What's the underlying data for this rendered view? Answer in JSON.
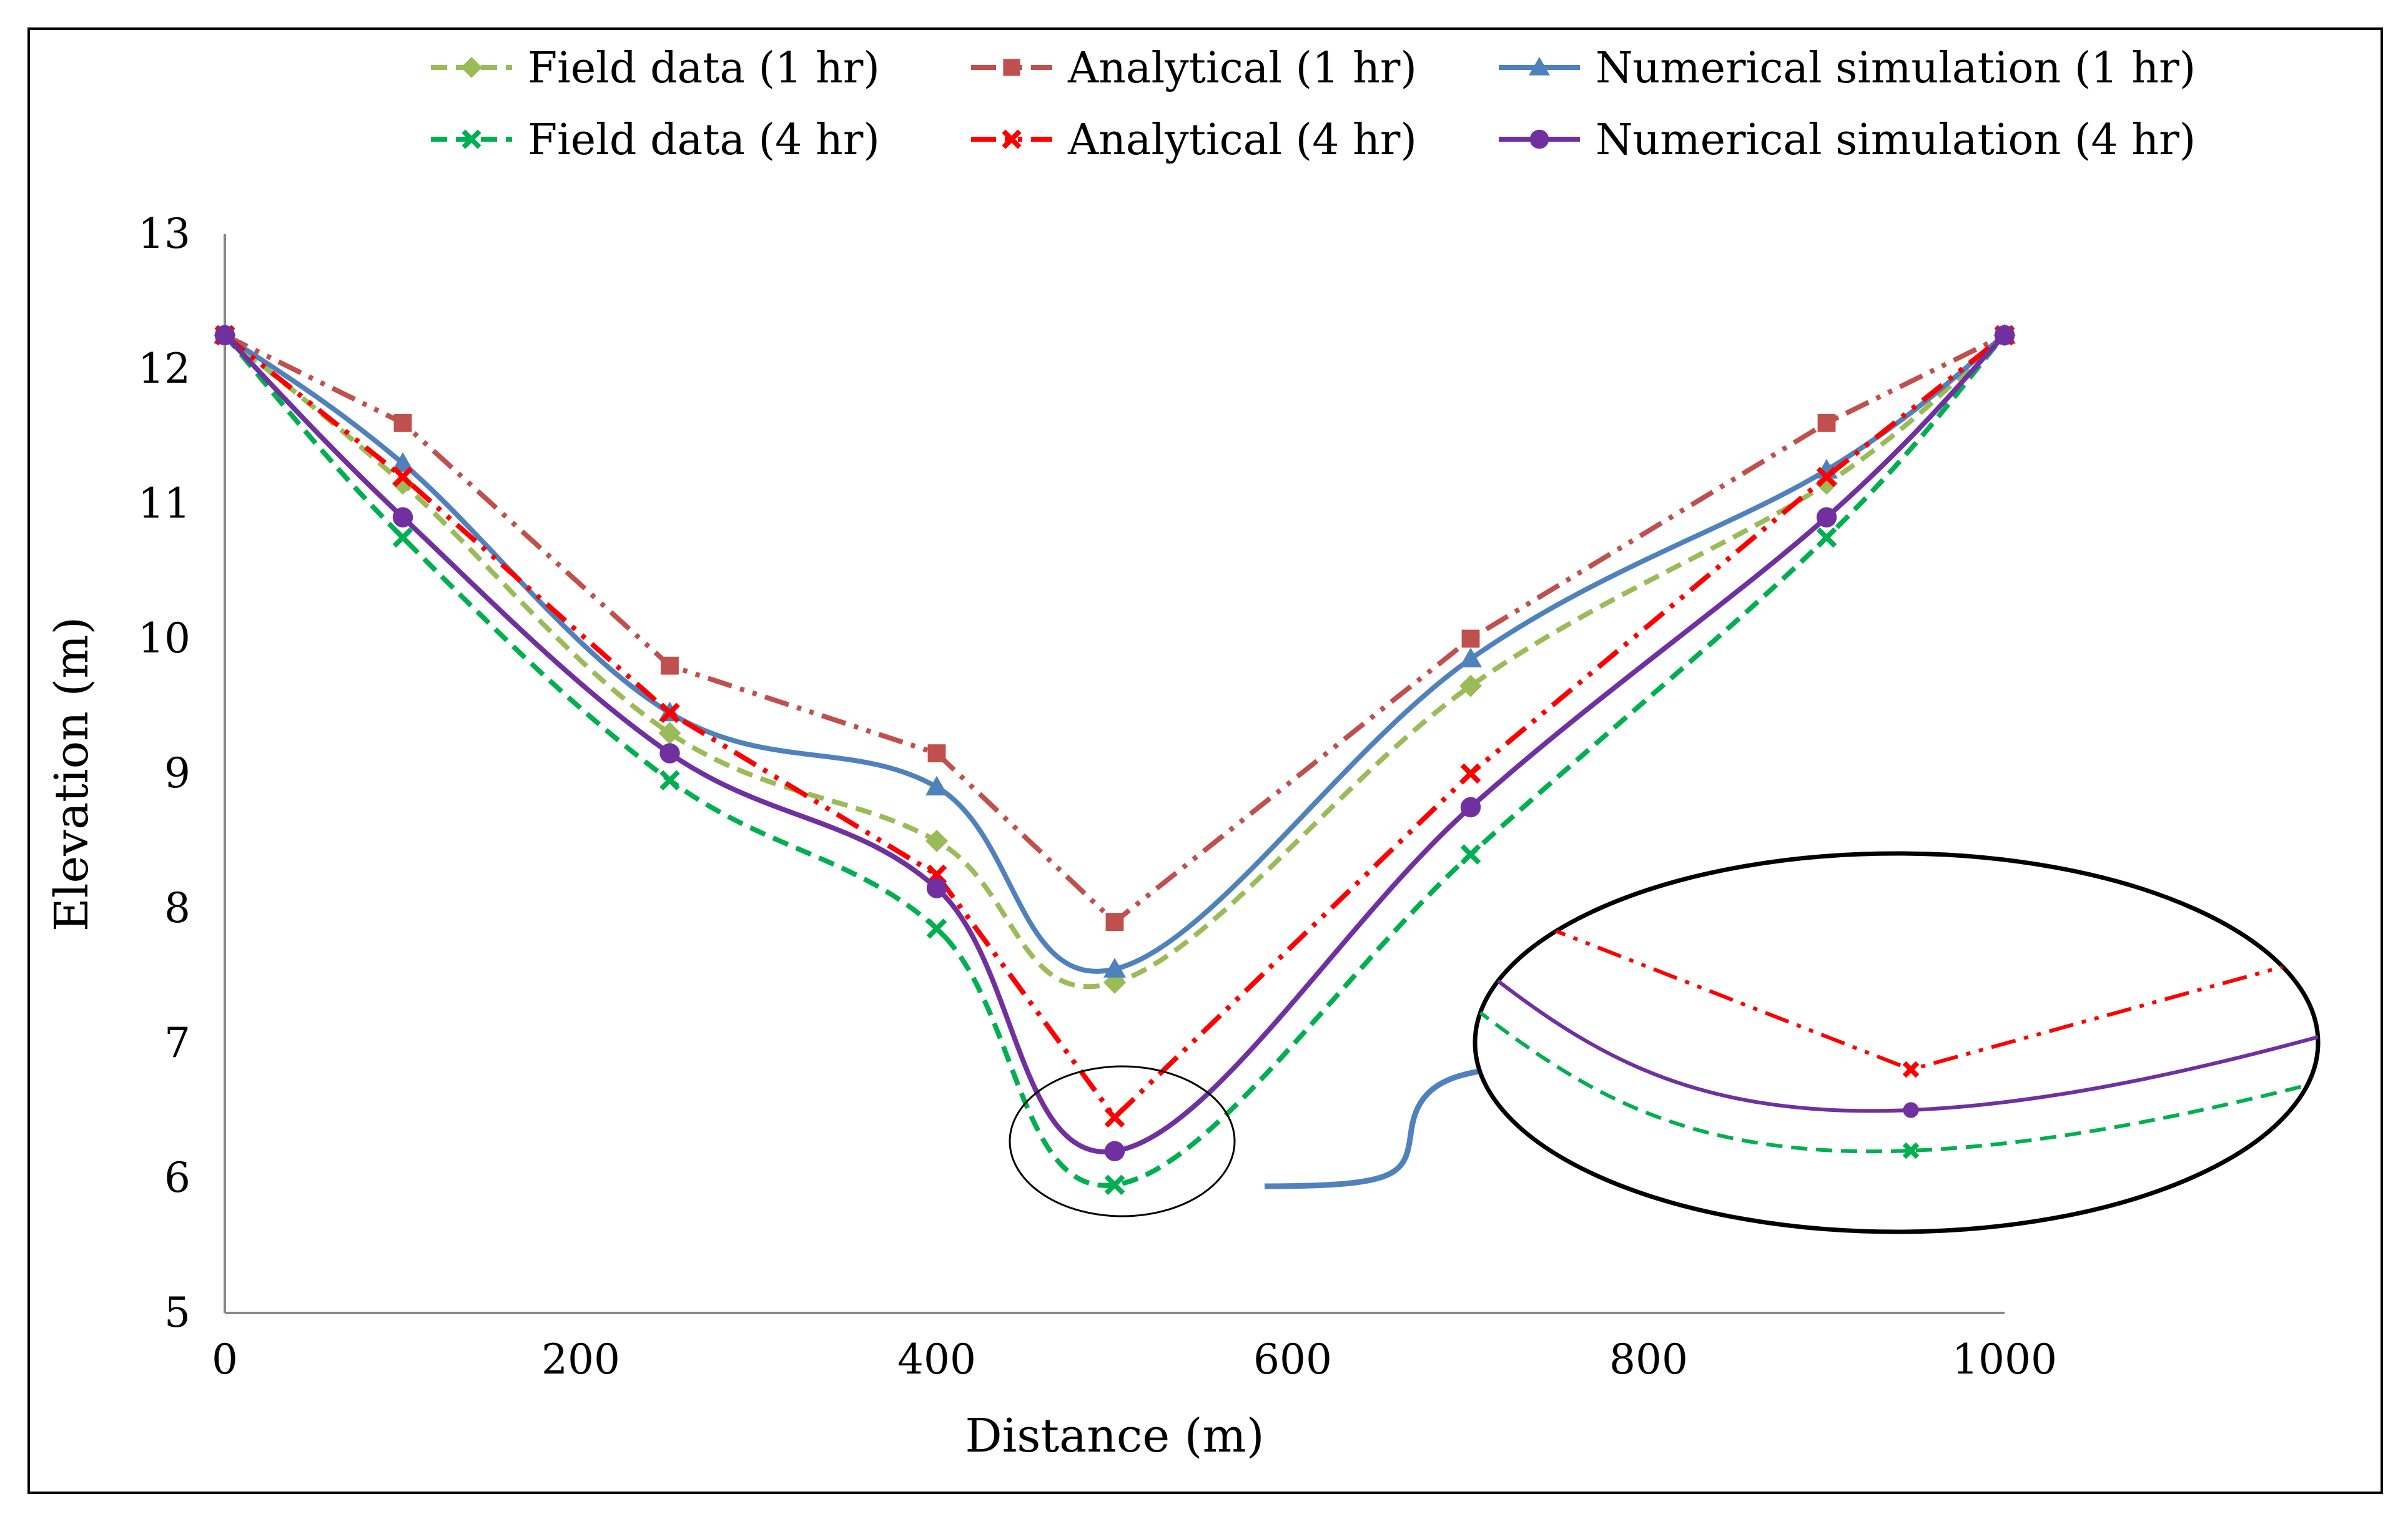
{
  "chart_data": {
    "type": "line",
    "title": "",
    "xlabel": "Distance (m)",
    "ylabel": "Elevation (m)",
    "xlim": [
      0,
      1000
    ],
    "ylim": [
      5,
      13
    ],
    "x_ticks": [
      0,
      200,
      400,
      600,
      800,
      1000
    ],
    "y_ticks": [
      5,
      6,
      7,
      8,
      9,
      10,
      11,
      12,
      13
    ],
    "x_tick_labels": [
      "0",
      "200",
      "400",
      "600",
      "800",
      "1000"
    ],
    "y_tick_labels": [
      "5",
      "6",
      "7",
      "8",
      "9",
      "10",
      "11",
      "12",
      "13"
    ],
    "legend_position": "top",
    "grid": false,
    "series": [
      {
        "name": "Field data (1 hr)",
        "color": "#9bbb59",
        "dash": "dashed",
        "marker": "diamond",
        "smooth": true,
        "x": [
          0,
          100,
          250,
          400,
          500,
          700,
          900,
          1000
        ],
        "y": [
          12.25,
          11.15,
          9.3,
          8.5,
          7.45,
          9.65,
          11.15,
          12.25
        ]
      },
      {
        "name": "Analytical (1 hr)",
        "color": "#c0504d",
        "dash": "dashdotdot",
        "marker": "square",
        "smooth": false,
        "x": [
          0,
          100,
          250,
          400,
          500,
          700,
          900,
          1000
        ],
        "y": [
          12.25,
          11.6,
          9.8,
          9.15,
          7.9,
          10.0,
          11.6,
          12.25
        ]
      },
      {
        "name": "Numerical simulation (1 hr)",
        "color": "#4f81bd",
        "dash": "solid",
        "marker": "triangle",
        "smooth": true,
        "x": [
          0,
          100,
          250,
          400,
          500,
          700,
          900,
          1000
        ],
        "y": [
          12.25,
          11.3,
          9.45,
          8.9,
          7.55,
          9.85,
          11.25,
          12.25
        ]
      },
      {
        "name": "Field data (4 hr)",
        "color": "#00b050",
        "dash": "dashed",
        "marker": "x",
        "smooth": true,
        "x": [
          0,
          100,
          250,
          400,
          500,
          700,
          900,
          1000
        ],
        "y": [
          12.25,
          10.75,
          8.95,
          7.85,
          5.95,
          8.4,
          10.75,
          12.25
        ]
      },
      {
        "name": "Analytical (4 hr)",
        "color": "#ff0000",
        "dash": "dashdotdot",
        "marker": "x",
        "smooth": false,
        "x": [
          0,
          100,
          250,
          400,
          500,
          700,
          900,
          1000
        ],
        "y": [
          12.25,
          11.2,
          9.45,
          8.25,
          6.45,
          9.0,
          11.2,
          12.25
        ]
      },
      {
        "name": "Numerical simulation (4 hr)",
        "color": "#7030a0",
        "dash": "solid",
        "marker": "circle",
        "smooth": true,
        "x": [
          0,
          100,
          250,
          400,
          500,
          700,
          900,
          1000
        ],
        "y": [
          12.25,
          10.9,
          9.15,
          8.15,
          6.2,
          8.75,
          10.9,
          12.25
        ]
      }
    ],
    "annotations": [
      {
        "type": "ellipse-highlight",
        "description": "zoomed detail of minimum region near x=500"
      }
    ]
  }
}
